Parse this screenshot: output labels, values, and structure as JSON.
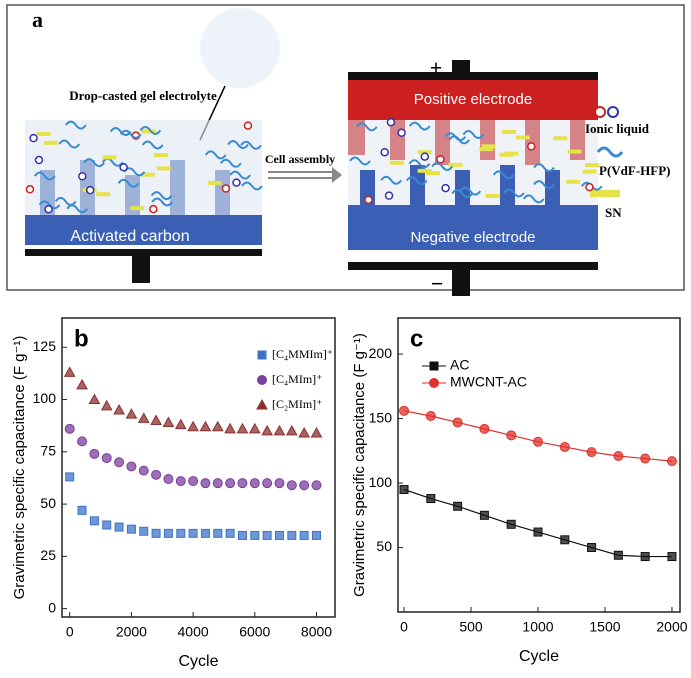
{
  "diagram": {
    "panel_label": "a",
    "drop_label": "Drop-casted gel electrolyte",
    "arrow_label": "Cell assembly",
    "positive_label": "Positive electrode",
    "negative_label": "Negative electrode",
    "left_electrode": "Activated carbon",
    "plus": "+",
    "minus": "−",
    "legend": [
      "Ionic liquid",
      "P(VdF-HFP)",
      "SN"
    ]
  },
  "chart_data": [
    {
      "type": "line",
      "panel_label": "b",
      "x_label": "Cycle",
      "y_label": "Gravimetric specific capacitance (F g⁻¹)",
      "line": false,
      "legend": "upper right",
      "x": [
        0,
        400,
        800,
        1200,
        1600,
        2000,
        2400,
        2800,
        3200,
        3600,
        4000,
        4400,
        4800,
        5200,
        5600,
        6000,
        6400,
        6800,
        7200,
        7600,
        8000
      ],
      "xlim": [
        -250,
        8600
      ],
      "xticks": [
        0,
        2000,
        4000,
        6000,
        8000
      ],
      "ylim": [
        -4,
        139
      ],
      "yticks": [
        0,
        25,
        50,
        75,
        100,
        125
      ],
      "series": [
        {
          "name": "[C₄MMIm]⁺",
          "color": "#3d74c9",
          "marker": "square",
          "values": [
            63,
            47,
            42,
            40,
            39,
            38,
            37,
            36,
            36,
            36,
            36,
            36,
            36,
            36,
            35,
            35,
            35,
            35,
            35,
            35,
            35
          ]
        },
        {
          "name": "[C₄MIm]⁺",
          "color": "#7b3f9e",
          "marker": "circle",
          "values": [
            86,
            80,
            74,
            72,
            70,
            68,
            66,
            64,
            62,
            61,
            61,
            60,
            60,
            60,
            60,
            60,
            60,
            60,
            59,
            59,
            59
          ]
        },
        {
          "name": "[C₂MIm]⁺",
          "color": "#8c2f2f",
          "marker": "triangle",
          "values": [
            113,
            107,
            100,
            97,
            95,
            93,
            91,
            90,
            89,
            88,
            87,
            87,
            87,
            86,
            86,
            86,
            85,
            85,
            85,
            84,
            84
          ]
        }
      ]
    },
    {
      "type": "line",
      "panel_label": "c",
      "x_label": "Cycle",
      "y_label": "Gravimetric specific capacitance (F g⁻¹)",
      "line": true,
      "legend": "upper left",
      "x": [
        0,
        200,
        400,
        600,
        800,
        1000,
        1200,
        1400,
        1600,
        1800,
        2000
      ],
      "xlim": [
        -45,
        2060
      ],
      "xticks": [
        0,
        500,
        1000,
        1500,
        2000
      ],
      "ylim": [
        0,
        228
      ],
      "yticks": [
        50,
        100,
        150,
        200
      ],
      "series": [
        {
          "name": "AC",
          "color": "#111111",
          "marker": "square",
          "values": [
            95,
            88,
            82,
            75,
            68,
            62,
            56,
            50,
            44,
            43,
            43
          ]
        },
        {
          "name": "MWCNT-AC",
          "color": "#e0302a",
          "marker": "circle",
          "values": [
            156,
            152,
            147,
            142,
            137,
            132,
            128,
            124,
            121,
            119,
            117
          ]
        }
      ]
    }
  ]
}
